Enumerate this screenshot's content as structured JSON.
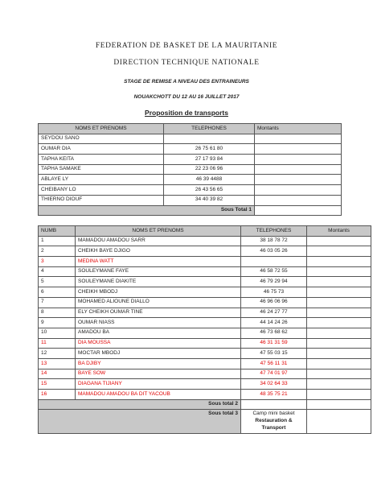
{
  "header": {
    "federation": "FEDERATION DE BASKET DE LA MAURITANIE",
    "direction": "DIRECTION TECHNIQUE NATIONALE",
    "stage": "STAGE DE REMISE A NIVEAU DES ENTRAINEURS",
    "dates": "NOUAKCHOTT DU 12 AU 16 JUILLET 2017",
    "subtitle": "Proposition de transports"
  },
  "table1": {
    "headers": [
      "NOMS ET PRENOMS",
      "TELEPHONES",
      "Montants"
    ],
    "rows": [
      {
        "name": "SEYDOU SANO",
        "phone": "",
        "amount": ""
      },
      {
        "name": "OUMAR DIA",
        "phone": "26 75 61 80",
        "amount": ""
      },
      {
        "name": "TAPHA KEITA",
        "phone": "27 17 93 84",
        "amount": ""
      },
      {
        "name": "TAPHA SAMAKE",
        "phone": "22 23 06 96",
        "amount": ""
      },
      {
        "name": "ABLAYE LY",
        "phone": "46 39 4488",
        "amount": ""
      },
      {
        "name": "CHEIBANY LO",
        "phone": "26 43 56 65",
        "amount": ""
      },
      {
        "name": "THIERNO DIOUF",
        "phone": "34 40 39 82",
        "amount": ""
      }
    ],
    "subtotal_label": "Sous Total 1"
  },
  "table2": {
    "headers": [
      "NUMB",
      "NOMS ET PRENOMS",
      "TELEPHONES",
      "Montants"
    ],
    "rows": [
      {
        "num": "1",
        "name": "MAMADOU AMADOU SARR",
        "phone": "38 18 78 72",
        "red": false
      },
      {
        "num": "2",
        "name": "CHEIKH BAYE DJIGO",
        "phone": "46 03 05 26",
        "red": false
      },
      {
        "num": "3",
        "name": "MEDINA WATT",
        "phone": "",
        "red": true
      },
      {
        "num": "4",
        "name": "SOULEYMANE FAYE",
        "phone": "46 58 72 55",
        "red": false
      },
      {
        "num": "5",
        "name": "SOULEYMANE DIAKITE",
        "phone": "46 79 29 94",
        "red": false
      },
      {
        "num": "6",
        "name": "CHEIKH MBODJ",
        "phone": "46 75 73",
        "red": false
      },
      {
        "num": "7",
        "name": "MOHAMED ALIOUNE DIALLO",
        "phone": "46 96 06 96",
        "red": false
      },
      {
        "num": "8",
        "name": "ELY CHEIKH OUMAR TINE",
        "phone": "46 24 27 77",
        "red": false
      },
      {
        "num": "9",
        "name": "OUMAR NIASS",
        "phone": "44 14 24 26",
        "red": false
      },
      {
        "num": "10",
        "name": "AMADOU BA",
        "phone": "46 73 68 62",
        "red": false
      },
      {
        "num": "11",
        "name": "DIA MOUSSA",
        "phone": "46 31 31 59",
        "red": true
      },
      {
        "num": "12",
        "name": "MOCTAR MBODJ",
        "phone": "47 55 03 15",
        "red": false
      },
      {
        "num": "13",
        "name": "BA DJIBY",
        "phone": "47 56 11 31",
        "red": true
      },
      {
        "num": "14",
        "name": "BAYE SOW",
        "phone": "47 74 01 97",
        "red": true
      },
      {
        "num": "15",
        "name": "DIAGANA TIJIANY",
        "phone": "34 02 64 33",
        "red": true
      },
      {
        "num": "16",
        "name": "MAMADOU AMADOU BA DIT YACOUB",
        "phone": "48 35 75 21",
        "red": true
      }
    ],
    "subtotal2_label": "Sous total 2",
    "subtotal3_label": "Sous total 3",
    "subtotal3_lines": [
      "Camp mini basket",
      "Restauration &",
      "Transport"
    ]
  },
  "colors": {
    "red": "#e00000",
    "gray": "#c8c8c8"
  }
}
